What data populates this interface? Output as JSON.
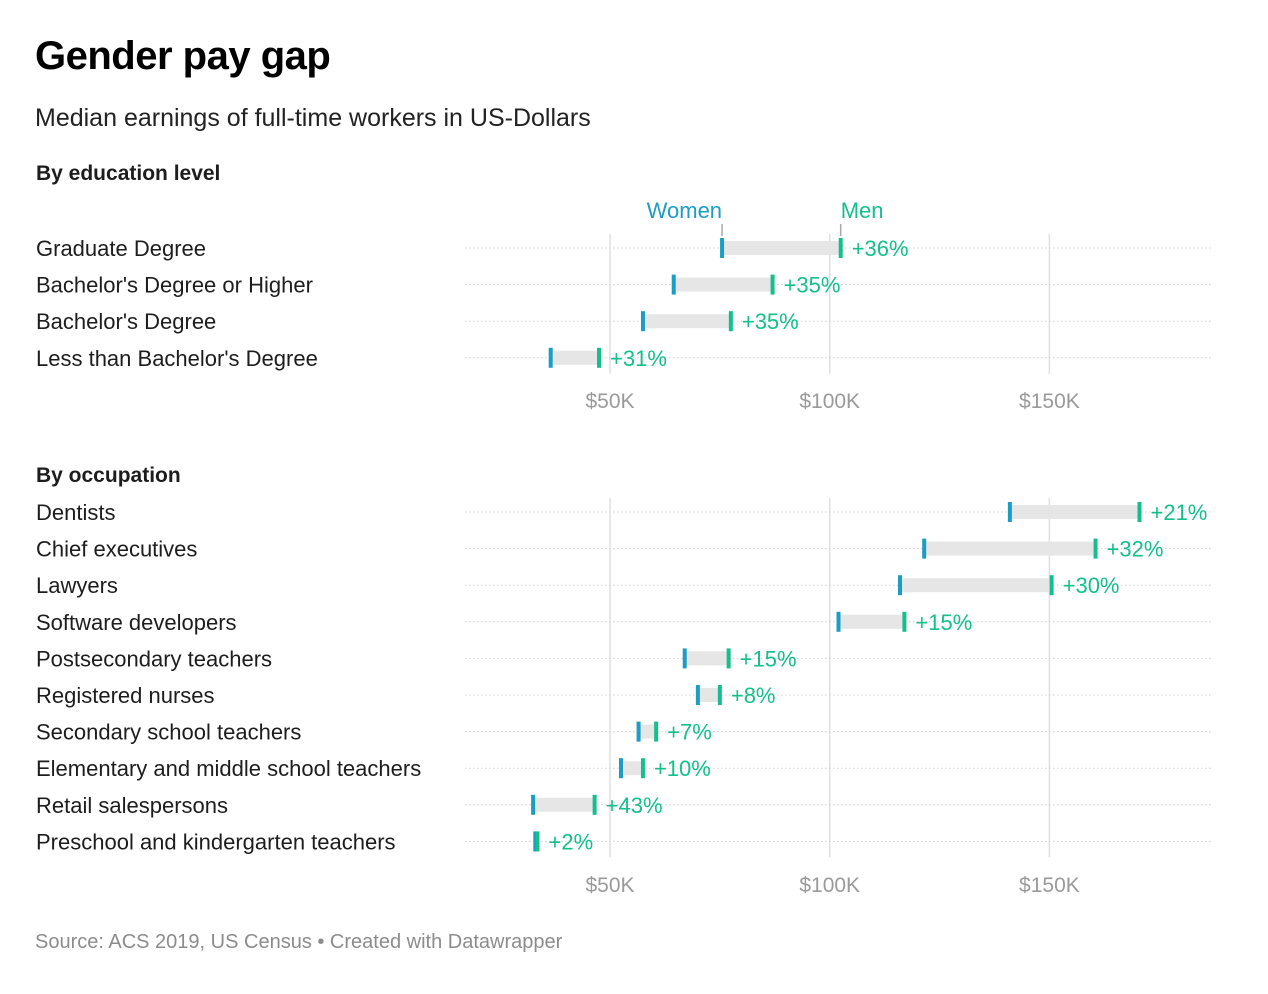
{
  "title": "Gender pay gap",
  "subtitle": "Median earnings of full-time workers in US-Dollars",
  "footer": "Source: ACS 2019, US Census • Created with Datawrapper",
  "colors": {
    "women": "#1b9dc4",
    "men": "#13c08c",
    "range": "#e6e6e6",
    "grid": "#e0e0e0",
    "tick": "#9a9a9a"
  },
  "legend": {
    "women": "Women",
    "men": "Men"
  },
  "chart_data": [
    {
      "type": "range-dot",
      "section": "By education level",
      "x_ticks": [
        {
          "value": 50000,
          "label": "$50K"
        },
        {
          "value": 100000,
          "label": "$100K"
        },
        {
          "value": 150000,
          "label": "$150K"
        }
      ],
      "xlim": [
        17000,
        187000
      ],
      "rows": [
        {
          "label": "Graduate Degree",
          "women": 75500,
          "men": 102500,
          "gap": "+36%"
        },
        {
          "label": "Bachelor's Degree or Higher",
          "women": 64500,
          "men": 87000,
          "gap": "+35%"
        },
        {
          "label": "Bachelor's Degree",
          "women": 57500,
          "men": 77500,
          "gap": "+35%"
        },
        {
          "label": "Less than Bachelor's Degree",
          "women": 36500,
          "men": 47500,
          "gap": "+31%"
        }
      ]
    },
    {
      "type": "range-dot",
      "section": "By occupation",
      "x_ticks": [
        {
          "value": 50000,
          "label": "$50K"
        },
        {
          "value": 100000,
          "label": "$100K"
        },
        {
          "value": 150000,
          "label": "$150K"
        }
      ],
      "xlim": [
        17000,
        187000
      ],
      "rows": [
        {
          "label": "Dentists",
          "women": 141000,
          "men": 170500,
          "gap": "+21%"
        },
        {
          "label": "Chief executives",
          "women": 121500,
          "men": 160500,
          "gap": "+32%"
        },
        {
          "label": "Lawyers",
          "women": 116000,
          "men": 150500,
          "gap": "+30%"
        },
        {
          "label": "Software developers",
          "women": 102000,
          "men": 117000,
          "gap": "+15%"
        },
        {
          "label": "Postsecondary teachers",
          "women": 67000,
          "men": 77000,
          "gap": "+15%"
        },
        {
          "label": "Registered nurses",
          "women": 70000,
          "men": 75000,
          "gap": "+8%"
        },
        {
          "label": "Secondary school teachers",
          "women": 56500,
          "men": 60500,
          "gap": "+7%"
        },
        {
          "label": "Elementary and middle school teachers",
          "women": 52500,
          "men": 57500,
          "gap": "+10%"
        },
        {
          "label": "Retail salespersons",
          "women": 32500,
          "men": 46500,
          "gap": "+43%"
        },
        {
          "label": "Preschool and kindergarten teachers",
          "women": 33000,
          "men": 33500,
          "gap": "+2%"
        }
      ]
    }
  ]
}
